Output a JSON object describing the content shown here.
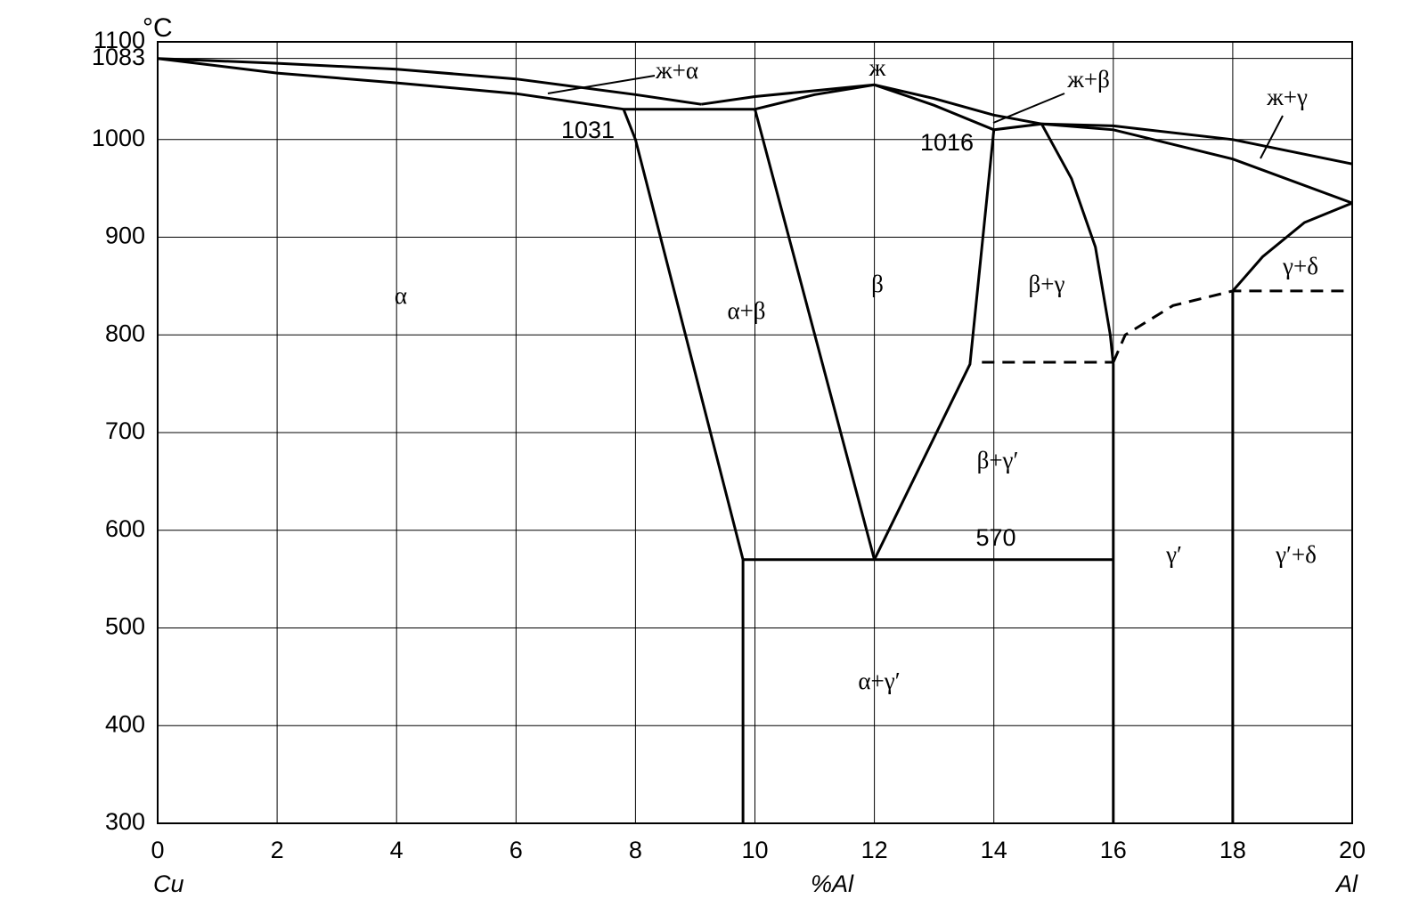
{
  "chart_data": {
    "type": "line",
    "y_unit": "°C",
    "x_label": "%Al",
    "x_start_label": "Cu",
    "x_end_label": "Al",
    "xlim": [
      0,
      20
    ],
    "xticks": [
      0,
      2,
      4,
      6,
      8,
      10,
      12,
      14,
      16,
      18,
      20
    ],
    "ylim": [
      300,
      1100
    ],
    "yticks": [
      300,
      400,
      500,
      600,
      700,
      800,
      900,
      1000,
      1083,
      1100
    ],
    "grid": true,
    "color": "#000000",
    "series": [
      {
        "style": "solid",
        "x": [
          0,
          2,
          4,
          6,
          8,
          9.1
        ],
        "values": [
          1083,
          1078,
          1072,
          1062,
          1046,
          1036
        ]
      },
      {
        "style": "solid",
        "x": [
          0,
          2,
          4,
          6,
          7.8
        ],
        "values": [
          1083,
          1068,
          1058,
          1047,
          1031
        ]
      },
      {
        "style": "solid",
        "x": [
          7.8,
          10
        ],
        "values": [
          1031,
          1031
        ]
      },
      {
        "style": "solid",
        "x": [
          7.8,
          8,
          9.8
        ],
        "values": [
          1031,
          1000,
          570
        ]
      },
      {
        "style": "solid",
        "x": [
          10,
          12
        ],
        "values": [
          1031,
          570
        ]
      },
      {
        "style": "solid",
        "x": [
          9.1,
          10,
          11,
          12
        ],
        "values": [
          1036,
          1044,
          1050,
          1056
        ]
      },
      {
        "style": "solid",
        "x": [
          10,
          11,
          12
        ],
        "values": [
          1031,
          1046,
          1056
        ]
      },
      {
        "style": "solid",
        "x": [
          12,
          13,
          14,
          14.8
        ],
        "values": [
          1056,
          1042,
          1025,
          1016
        ]
      },
      {
        "style": "solid",
        "x": [
          12,
          13,
          14,
          14.8
        ],
        "values": [
          1056,
          1035,
          1010,
          1016
        ]
      },
      {
        "style": "solid",
        "x": [
          14,
          13.9,
          13.6,
          12
        ],
        "values": [
          1010,
          950,
          770,
          570
        ]
      },
      {
        "style": "solid",
        "x": [
          9.8,
          16
        ],
        "values": [
          570,
          570
        ]
      },
      {
        "style": "solid",
        "x": [
          9.8,
          9.8
        ],
        "values": [
          570,
          300
        ]
      },
      {
        "style": "solid",
        "x": [
          14.8,
          15.3,
          15.7,
          15.95,
          16,
          16
        ],
        "values": [
          1016,
          960,
          890,
          800,
          770,
          300
        ]
      },
      {
        "style": "solid",
        "x": [
          14.8,
          16,
          18,
          20
        ],
        "values": [
          1016,
          1010,
          980,
          935
        ]
      },
      {
        "style": "solid",
        "x": [
          14.8,
          16,
          18,
          20
        ],
        "values": [
          1016,
          1014,
          1000,
          975
        ]
      },
      {
        "style": "dashed",
        "x": [
          13.8,
          16
        ],
        "values": [
          772,
          772
        ]
      },
      {
        "style": "dashed",
        "x": [
          16,
          16.2,
          17,
          18,
          20
        ],
        "values": [
          772,
          800,
          830,
          845,
          845
        ]
      },
      {
        "style": "solid",
        "x": [
          18,
          18.5,
          19.2,
          20
        ],
        "values": [
          845,
          880,
          915,
          935
        ]
      },
      {
        "style": "solid",
        "x": [
          18,
          18
        ],
        "values": [
          845,
          300
        ]
      }
    ],
    "labels": [
      "ж+α",
      "ж",
      "ж+β",
      "ж+γ",
      "1031",
      "1016",
      "α",
      "β",
      "β+γ",
      "γ+δ",
      "α+β",
      "β+γ′",
      "570",
      "γ′",
      "γ′+δ",
      "α+γ′"
    ]
  }
}
